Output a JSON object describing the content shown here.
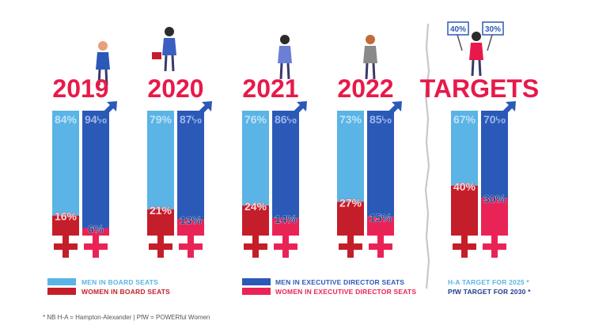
{
  "colors": {
    "men_board": "#5ab4e6",
    "men_exec": "#2b59b8",
    "women_board": "#c41e2a",
    "women_exec": "#ea2356",
    "year_text": "#e8194a",
    "women_symbol": "#e8194a",
    "divider": "#c8c8c8"
  },
  "chart_data": {
    "type": "bar",
    "categories": [
      "2019",
      "2020",
      "2021",
      "2022",
      "TARGETS"
    ],
    "series": [
      {
        "name": "MEN IN BOARD SEATS",
        "values": [
          84,
          79,
          76,
          73,
          67
        ],
        "labels": [
          "84%",
          "79%",
          "76%",
          "73%",
          "67%"
        ]
      },
      {
        "name": "WOMEN IN BOARD SEATS",
        "values": [
          16,
          21,
          24,
          27,
          40
        ],
        "labels": [
          "16%",
          "21%",
          "24%",
          "27%",
          "40%"
        ]
      },
      {
        "name": "MEN IN EXECUTIVE DIRECTOR SEATS",
        "values": [
          94,
          87,
          86,
          85,
          70
        ],
        "labels": [
          "94%",
          "87%",
          "86%",
          "85%",
          "70%"
        ]
      },
      {
        "name": "WOMEN IN EXECUTIVE DIRECTOR SEATS",
        "values": [
          6,
          13,
          14,
          15,
          30
        ],
        "labels": [
          "6%",
          "13%",
          "14%",
          "15%",
          "30%"
        ]
      }
    ],
    "ylim": [
      0,
      100
    ],
    "legend_placement": "bottom",
    "grid": false
  },
  "legend": {
    "men_board": "MEN IN BOARD SEATS",
    "women_board": "WOMEN IN BOARD SEATS",
    "men_exec": "MEN IN EXECUTIVE DIRECTOR SEATS",
    "women_exec": "WOMEN IN EXECUTIVE DIRECTOR SEATS",
    "target_ha": "H-A TARGET FOR 2025 *",
    "target_pfw": "PfW TARGET FOR 2030 *"
  },
  "sign_labels": [
    "40%",
    "30%"
  ],
  "footnote": "* NB  H-A = Hampton-Alexander  | PfW = POWERful Women",
  "icons": [
    "male-arrow-icon",
    "female-symbol-icon",
    "woman-figure-icon",
    "protest-sign-icon"
  ]
}
